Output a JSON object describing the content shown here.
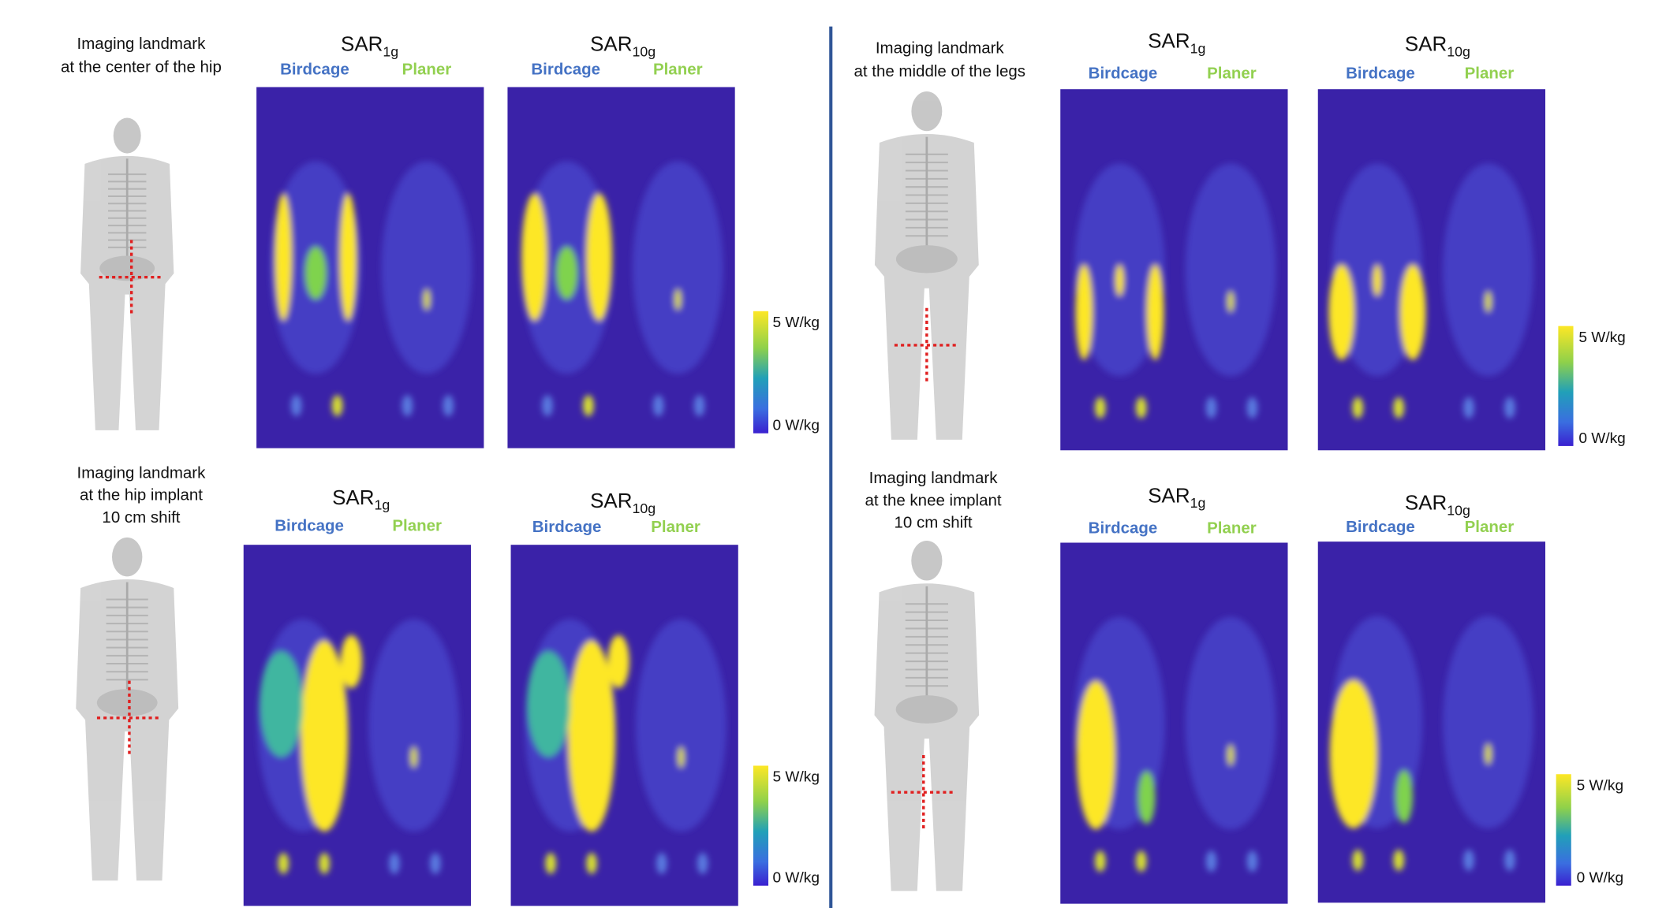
{
  "panels": [
    {
      "landmark": [
        "Imaging landmark",
        "at the center of the hip"
      ],
      "maps": [
        {
          "title": "SAR",
          "subscript": "1g",
          "left": "Birdcage",
          "right": "Planer"
        },
        {
          "title": "SAR",
          "subscript": "10g",
          "left": "Birdcage",
          "right": "Planer"
        }
      ],
      "colorbar": {
        "max": "5 W/kg",
        "min": "0 W/kg"
      }
    },
    {
      "landmark": [
        "Imaging landmark",
        "at the middle of the legs"
      ],
      "maps": [
        {
          "title": "SAR",
          "subscript": "1g",
          "left": "Birdcage",
          "right": "Planer"
        },
        {
          "title": "SAR",
          "subscript": "10g",
          "left": "Birdcage",
          "right": "Planer"
        }
      ],
      "colorbar": {
        "max": "5 W/kg",
        "min": "0 W/kg"
      }
    },
    {
      "landmark": [
        "Imaging landmark",
        "at the hip implant",
        "10 cm shift"
      ],
      "maps": [
        {
          "title": "SAR",
          "subscript": "1g",
          "left": "Birdcage",
          "right": "Planer"
        },
        {
          "title": "SAR",
          "subscript": "10g",
          "left": "Birdcage",
          "right": "Planer"
        }
      ],
      "colorbar": {
        "max": "5 W/kg",
        "min": "0 W/kg"
      }
    },
    {
      "landmark": [
        "Imaging landmark",
        "at the knee implant",
        "10 cm shift"
      ],
      "maps": [
        {
          "title": "SAR",
          "subscript": "1g",
          "left": "Birdcage",
          "right": "Planer"
        },
        {
          "title": "SAR",
          "subscript": "10g",
          "left": "Birdcage",
          "right": "Planer"
        }
      ],
      "colorbar": {
        "max": "5 W/kg",
        "min": "0 W/kg"
      }
    }
  ]
}
